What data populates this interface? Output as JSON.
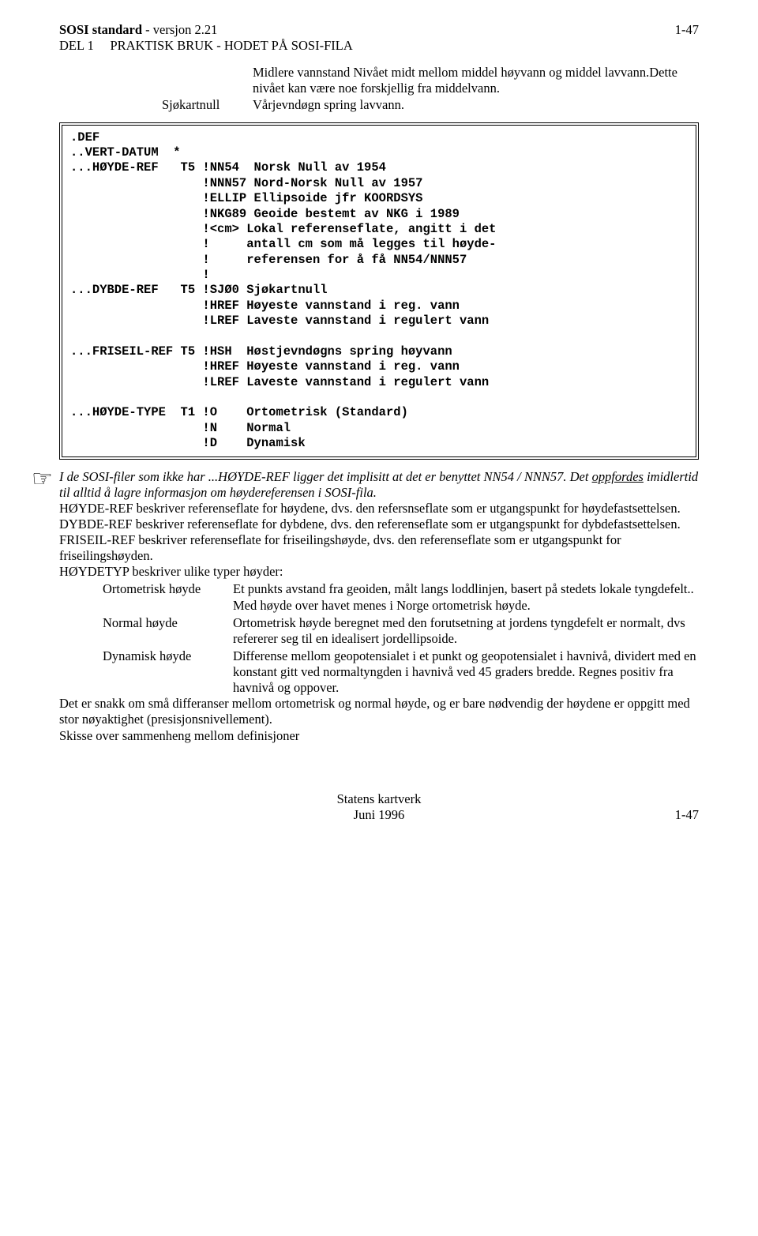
{
  "header": {
    "title_bold": "SOSI standard",
    "title_rest": " - versjon 2.21",
    "page_top": "1-47",
    "line2a": "DEL 1",
    "line2b": "PRAKTISK BRUK - HODET PÅ SOSI-FILA"
  },
  "defs": {
    "row1_text": "Midlere vannstand Nivået midt mellom middel høyvann og middel lavvann.Dette nivået kan være noe forskjellig fra middelvann.",
    "row2_label": "Sjøkartnull",
    "row2_text": "Vårjevndøgn spring lavvann."
  },
  "code": ".DEF\n..VERT-DATUM  *\n...HØYDE-REF   T5 !NN54  Norsk Null av 1954\n                  !NNN57 Nord-Norsk Null av 1957\n                  !ELLIP Ellipsoide jfr KOORDSYS\n                  !NKG89 Geoide bestemt av NKG i 1989\n                  !<cm> Lokal referenseflate, angitt i det\n                  !     antall cm som må legges til høyde-\n                  !     referensen for å få NN54/NNN57\n                  !\n...DYBDE-REF   T5 !SJØ0 Sjøkartnull\n                  !HREF Høyeste vannstand i reg. vann\n                  !LREF Laveste vannstand i regulert vann\n\n...FRISEIL-REF T5 !HSH  Høstjevndøgns spring høyvann\n                  !HREF Høyeste vannstand i reg. vann\n                  !LREF Laveste vannstand i regulert vann\n\n...HØYDE-TYPE  T1 !O    Ortometrisk (Standard)\n                  !N    Normal\n                  !D    Dynamisk",
  "body": {
    "p1a": "I de SOSI-filer som ikke har ...HØYDE-REF ligger det implisitt at det er benyttet NN54 / NNN57. Det ",
    "p1b": "oppfordes",
    "p1c": " imidlertid til alltid å lagre informasjon om høydereferensen i SOSI-fila.",
    "p2": "HØYDE-REF beskriver referenseflate for høydene, dvs. den refersnseflate som er utgangspunkt for høydefastsettelsen.",
    "p3": "DYBDE-REF beskriver referenseflate for dybdene, dvs. den referenseflate som er utgangspunkt for dybdefastsettelsen.",
    "p4": "FRISEIL-REF beskriver referenseflate for friseilingshøyde, dvs. den referenseflate som er utgangspunkt for friseilingshøyden.",
    "p5": "HØYDETYP beskriver ulike typer høyder:",
    "h1_label": "Ortometrisk høyde",
    "h1_text": "Et punkts avstand fra geoiden, målt langs loddlinjen, basert på stedets lokale tyngdefelt.. Med høyde over havet menes i Norge ortometrisk høyde.",
    "h2_label": "Normal høyde",
    "h2_text": "Ortometrisk høyde beregnet med den forutsetning at jordens tyngdefelt er normalt, dvs refererer seg til en idealisert jordellipsoide.",
    "h3_label": "Dynamisk høyde",
    "h3_text": "Differense mellom geopotensialet i et punkt og geopotensialet i havnivå, dividert med en konstant gitt ved normaltyngden i havnivå ved 45 graders bredde. Regnes positiv fra havnivå og oppover.",
    "p6": "Det er snakk om små differanser mellom ortometrisk og normal høyde, og er bare nødvendig der høydene er oppgitt med stor nøyaktighet (presisjonsnivellement).",
    "p7": "Skisse over sammenheng mellom definisjoner"
  },
  "footer": {
    "line1": "Statens kartverk",
    "line2": "Juni 1996",
    "page": "1-47"
  },
  "icons": {
    "hand": "☞"
  }
}
